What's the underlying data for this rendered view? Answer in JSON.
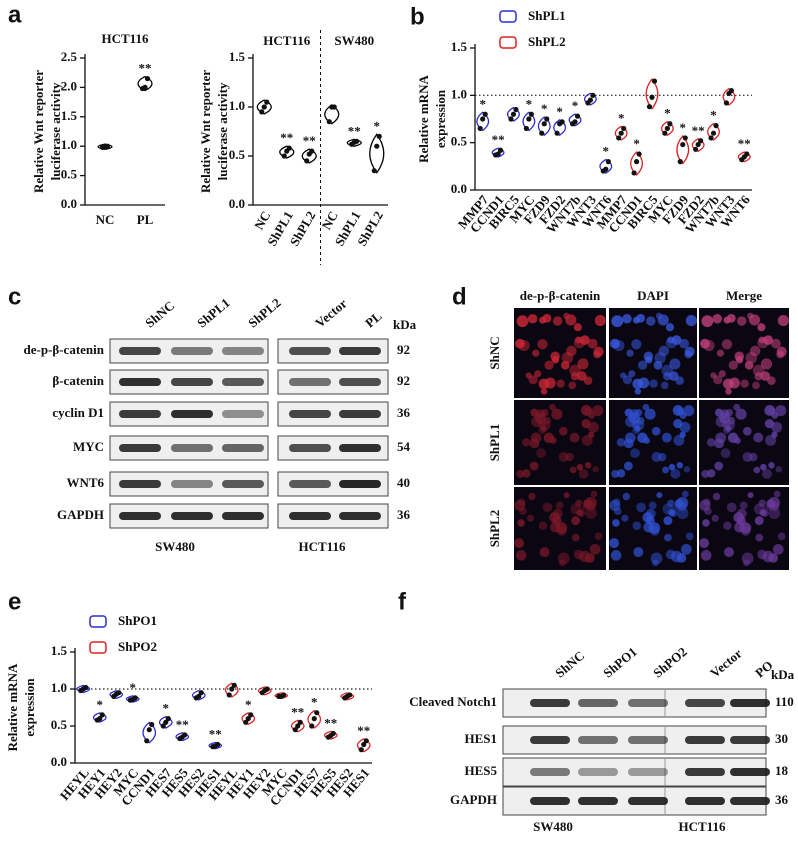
{
  "chart_data": [
    {
      "type": "violin",
      "panel_label": "a",
      "title": "HCT116",
      "ylabel": [
        "Relative Wnt reporter",
        "luciferase activity"
      ],
      "ylim": [
        0,
        2.5
      ],
      "yticks": [
        {
          "value": 0,
          "label": "0.0"
        },
        0.5,
        {
          "value": 1,
          "label": "1.0"
        },
        1.5,
        {
          "value": 2,
          "label": "2.0"
        },
        2.5
      ],
      "series": [
        {
          "color": "#000000",
          "categories": [
            "NC",
            "PL"
          ],
          "values": [
            [
              0.98,
              1.0,
              1.0
            ],
            [
              1.98,
              2.0,
              2.15
            ]
          ],
          "significance": [
            null,
            "**"
          ]
        }
      ]
    },
    {
      "type": "violin",
      "ylabel": [
        "Relative Wnt reporter",
        "luciferase activity"
      ],
      "ylim": [
        0,
        1.5
      ],
      "yticks": [
        {
          "value": 0,
          "label": "0.0"
        },
        0.5,
        {
          "value": 1,
          "label": "1.0"
        },
        1.5
      ],
      "series": [
        {
          "title": "HCT116",
          "color": "#000000",
          "categories": [
            "NC",
            "ShPL1",
            "ShPL2"
          ],
          "values": [
            [
              0.95,
              1.0,
              1.05
            ],
            [
              0.5,
              0.55,
              0.58
            ],
            [
              0.45,
              0.52,
              0.55
            ]
          ],
          "significance": [
            null,
            "**",
            "**"
          ]
        },
        {
          "title": "SW480",
          "color": "#000000",
          "categories": [
            "NC",
            "ShPL1",
            "ShPL2"
          ],
          "values": [
            [
              0.85,
              1.0,
              1.0
            ],
            [
              0.62,
              0.64,
              0.65
            ],
            [
              0.35,
              0.6,
              0.7
            ]
          ],
          "significance": [
            null,
            "**",
            "*"
          ]
        }
      ]
    },
    {
      "type": "violin",
      "panel_label": "b",
      "ylabel": [
        "Relative mRNA",
        "expression"
      ],
      "refline": 1,
      "ylim": [
        0,
        1.5
      ],
      "yticks": [
        {
          "value": 0,
          "label": "0.0"
        },
        0.5,
        {
          "value": 1,
          "label": "1.0"
        },
        1.5
      ],
      "series": [
        {
          "name": "ShPL1",
          "color": "#2b2bd0",
          "categories": [
            "MMP7",
            "CCND1",
            "BIRC5",
            "MYC",
            "FZD9",
            "FZD2",
            "WNT7b",
            "WNT3",
            "WNT6"
          ],
          "values": [
            [
              0.65,
              0.75,
              0.8
            ],
            [
              0.37,
              0.38,
              0.42
            ],
            [
              0.75,
              0.8,
              0.85
            ],
            [
              0.65,
              0.75,
              0.8
            ],
            [
              0.6,
              0.7,
              0.75
            ],
            [
              0.6,
              0.7,
              0.72
            ],
            [
              0.7,
              0.72,
              0.78
            ],
            [
              0.92,
              0.95,
              1.0
            ],
            [
              0.2,
              0.22,
              0.3
            ]
          ],
          "significance": [
            "*",
            "**",
            null,
            "*",
            "*",
            "*",
            "*",
            null,
            "*"
          ]
        },
        {
          "name": "ShPL2",
          "color": "#e02020",
          "categories": [
            "MMP7",
            "CCND1",
            "BIRC5",
            "MYC",
            "FZD9",
            "FZD2",
            "WNT7b",
            "WNT3",
            "WNT6"
          ],
          "values": [
            [
              0.55,
              0.6,
              0.65
            ],
            [
              0.18,
              0.3,
              0.38
            ],
            [
              0.88,
              0.98,
              1.15
            ],
            [
              0.6,
              0.65,
              0.7
            ],
            [
              0.3,
              0.48,
              0.55
            ],
            [
              0.43,
              0.48,
              0.52
            ],
            [
              0.55,
              0.6,
              0.68
            ],
            [
              0.92,
              1.02,
              1.05
            ],
            [
              0.32,
              0.35,
              0.38
            ]
          ],
          "significance": [
            "*",
            "*",
            null,
            "*",
            "*",
            "**",
            "*",
            null,
            "**"
          ]
        }
      ]
    },
    {
      "type": "violin",
      "panel_label": "e",
      "ylabel": [
        "Relative mRNA",
        "expression"
      ],
      "refline": 1,
      "ylim": [
        0,
        1.5
      ],
      "yticks": [
        {
          "value": 0,
          "label": "0.0"
        },
        0.5,
        {
          "value": 1,
          "label": "1.0"
        },
        1.5
      ],
      "series": [
        {
          "name": "ShPO1",
          "color": "#2b2bd0",
          "categories": [
            "HEYL",
            "HEY1",
            "HEY2",
            "MYC",
            "CCND1",
            "HES7",
            "HES5",
            "HES2",
            "HES1"
          ],
          "values": [
            [
              0.98,
              1.0,
              1.02
            ],
            [
              0.58,
              0.6,
              0.65
            ],
            [
              0.9,
              0.93,
              0.95
            ],
            [
              0.85,
              0.86,
              0.88
            ],
            [
              0.3,
              0.45,
              0.52
            ],
            [
              0.5,
              0.55,
              0.6
            ],
            [
              0.33,
              0.35,
              0.38
            ],
            [
              0.88,
              0.9,
              0.95
            ],
            [
              0.22,
              0.23,
              0.25
            ]
          ],
          "significance": [
            null,
            "*",
            null,
            "*",
            null,
            "*",
            "**",
            null,
            "**"
          ]
        },
        {
          "name": "ShPO2",
          "color": "#e02020",
          "categories": [
            "HEYL",
            "HEY1",
            "HEY2",
            "MYC",
            "CCND1",
            "HES7",
            "HES5",
            "HES2",
            "HES1"
          ],
          "values": [
            [
              0.92,
              1.0,
              1.05
            ],
            [
              0.55,
              0.6,
              0.65
            ],
            [
              0.95,
              0.98,
              1.0
            ],
            [
              0.9,
              0.9,
              0.92
            ],
            [
              0.45,
              0.5,
              0.55
            ],
            [
              0.5,
              0.6,
              0.68
            ],
            [
              0.35,
              0.37,
              0.4
            ],
            [
              0.88,
              0.9,
              0.92
            ],
            [
              0.18,
              0.25,
              0.3
            ]
          ],
          "significance": [
            null,
            "*",
            null,
            null,
            "**",
            "*",
            "**",
            null,
            "**"
          ]
        }
      ]
    }
  ],
  "blot_c": {
    "panel_label": "c",
    "lanes": [
      "ShNC",
      "ShPL1",
      "ShPL2",
      "Vector",
      "PL"
    ],
    "kda_header": "kDa",
    "groups": [
      "SW480",
      "HCT116"
    ],
    "rows": [
      {
        "label": "de-p-β-catenin",
        "kda": "92"
      },
      {
        "label": "β-catenin",
        "kda": "92"
      },
      {
        "label": "cyclin D1",
        "kda": "36"
      },
      {
        "label": "MYC",
        "kda": "54"
      },
      {
        "label": "WNT6",
        "kda": "40"
      },
      {
        "label": "GAPDH",
        "kda": "36"
      }
    ]
  },
  "image_d": {
    "panel_label": "d",
    "columns": [
      "de-p-β-catenin",
      "DAPI",
      "Merge"
    ],
    "rows": [
      "ShNC",
      "ShPL1",
      "ShPL2"
    ]
  },
  "blot_f": {
    "panel_label": "f",
    "lanes": [
      "ShNC",
      "ShPO1",
      "ShPO2",
      "Vector",
      "PO"
    ],
    "kda_header": "kDa",
    "groups": [
      "SW480",
      "HCT116"
    ],
    "rows": [
      {
        "label": "Cleaved Notch1",
        "kda": "110"
      },
      {
        "label": "HES1",
        "kda": "30"
      },
      {
        "label": "HES5",
        "kda": "18"
      },
      {
        "label": "GAPDH",
        "kda": "36"
      }
    ]
  }
}
